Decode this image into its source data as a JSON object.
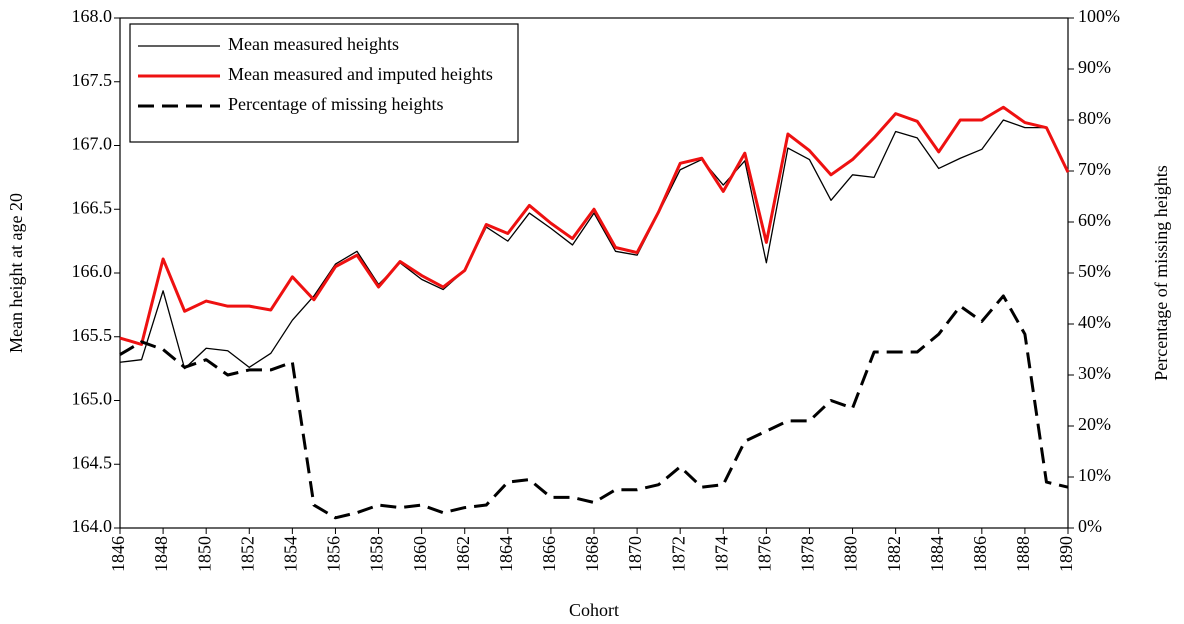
{
  "chart_data": {
    "type": "line",
    "x_label": "Cohort",
    "y_label": "Mean height at age 20",
    "y2_label": "Percentage of missing heights",
    "x": [
      1846,
      1847,
      1848,
      1849,
      1850,
      1851,
      1852,
      1853,
      1854,
      1855,
      1856,
      1857,
      1858,
      1859,
      1860,
      1861,
      1862,
      1863,
      1864,
      1865,
      1866,
      1867,
      1868,
      1869,
      1870,
      1871,
      1872,
      1873,
      1874,
      1875,
      1876,
      1877,
      1878,
      1879,
      1880,
      1881,
      1882,
      1883,
      1884,
      1885,
      1886,
      1887,
      1888,
      1889,
      1890
    ],
    "series": [
      {
        "name": "Mean measured heights",
        "color": "#000000",
        "line_width": 1.3,
        "line_style": "solid",
        "values": [
          165.3,
          165.32,
          165.86,
          165.25,
          165.41,
          165.39,
          165.26,
          165.37,
          165.63,
          165.82,
          166.07,
          166.17,
          165.91,
          166.08,
          165.95,
          165.87,
          166.02,
          166.36,
          166.25,
          166.47,
          166.35,
          166.22,
          166.47,
          166.17,
          166.14,
          166.47,
          166.81,
          166.89,
          166.69,
          166.88,
          166.08,
          166.98,
          166.89,
          166.57,
          166.77,
          166.75,
          167.11,
          167.06,
          166.82,
          166.9,
          166.97,
          167.2,
          167.14,
          167.14,
          166.79
        ]
      },
      {
        "name": "Mean measured and imputed heights",
        "color": "#ee1111",
        "line_width": 3,
        "line_style": "solid",
        "values": [
          165.49,
          165.44,
          166.11,
          165.7,
          165.78,
          165.74,
          165.74,
          165.71,
          165.97,
          165.79,
          166.05,
          166.14,
          165.89,
          166.09,
          165.98,
          165.89,
          166.02,
          166.38,
          166.31,
          166.53,
          166.39,
          166.27,
          166.5,
          166.2,
          166.16,
          166.48,
          166.86,
          166.9,
          166.64,
          166.94,
          166.24,
          167.09,
          166.96,
          166.77,
          166.89,
          167.06,
          167.25,
          167.19,
          166.95,
          167.2,
          167.2,
          167.3,
          167.18,
          167.14,
          166.79
        ]
      },
      {
        "name": "Percentage of missing heights",
        "color": "#000000",
        "line_width": 3,
        "line_style": "dashed",
        "axis": "y2",
        "values": [
          34,
          36.5,
          35,
          31.5,
          33,
          30,
          31,
          31,
          32.5,
          4.5,
          2,
          3,
          4.5,
          4,
          4.5,
          3,
          4,
          4.5,
          9,
          9.5,
          6,
          6,
          5,
          7.5,
          7.5,
          8.5,
          12,
          8,
          8.5,
          17,
          19,
          21,
          21,
          25,
          23.5,
          34.5,
          34.5,
          34.5,
          38,
          43.5,
          40.5,
          45.5,
          38,
          9,
          8
        ]
      }
    ],
    "xlim": [
      1846,
      1890
    ],
    "xticks": [
      1846,
      1848,
      1850,
      1852,
      1854,
      1856,
      1858,
      1860,
      1862,
      1864,
      1866,
      1868,
      1870,
      1872,
      1874,
      1876,
      1878,
      1880,
      1882,
      1884,
      1886,
      1888,
      1890
    ],
    "ylim": [
      164,
      168
    ],
    "yticks": [
      {
        "value": 164,
        "label": "164.0"
      },
      164.5,
      {
        "value": 165,
        "label": "165.0"
      },
      165.5,
      {
        "value": 166,
        "label": "166.0"
      },
      166.5,
      {
        "value": 167,
        "label": "167.0"
      },
      167.5,
      {
        "value": 168,
        "label": "168.0"
      }
    ],
    "y2lim": [
      0,
      100
    ],
    "y2ticks": [
      {
        "value": 0,
        "label": "0%"
      },
      {
        "value": 10,
        "label": "10%"
      },
      {
        "value": 20,
        "label": "20%"
      },
      {
        "value": 30,
        "label": "30%"
      },
      {
        "value": 40,
        "label": "40%"
      },
      {
        "value": 50,
        "label": "50%"
      },
      {
        "value": 60,
        "label": "60%"
      },
      {
        "value": 70,
        "label": "70%"
      },
      {
        "value": 80,
        "label": "80%"
      },
      {
        "value": 90,
        "label": "90%"
      },
      {
        "value": 100,
        "label": "100%"
      }
    ],
    "legend": "top-left"
  }
}
